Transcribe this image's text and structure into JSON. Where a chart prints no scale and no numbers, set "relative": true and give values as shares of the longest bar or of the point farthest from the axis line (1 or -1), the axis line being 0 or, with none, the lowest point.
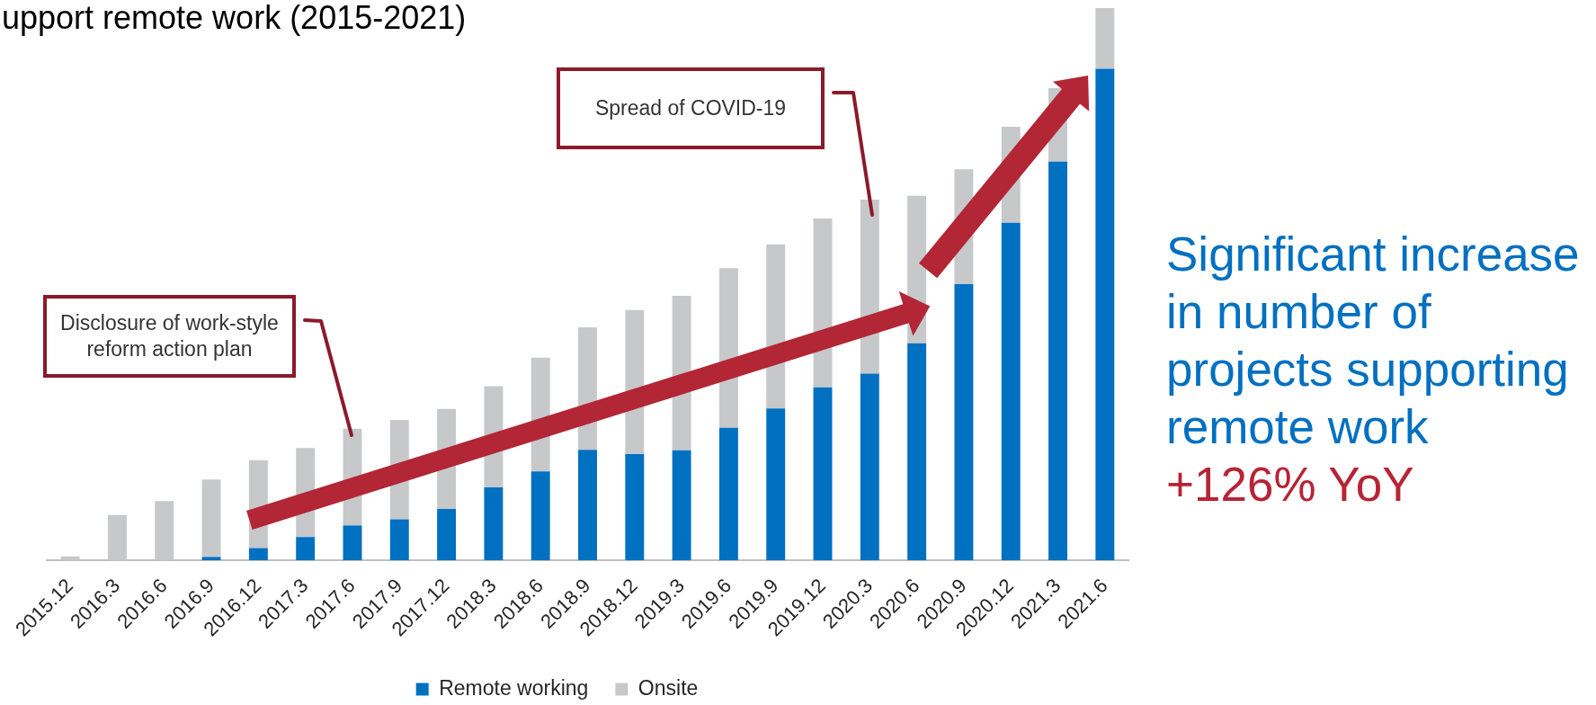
{
  "chart_data": {
    "type": "bar",
    "title": "upport remote work (2015-2021)",
    "categories": [
      "2015.12",
      "2016.3",
      "2016.6",
      "2016.9",
      "2016.12",
      "2017.3",
      "2017.6",
      "2017.9",
      "2017.12",
      "2018.3",
      "2018.6",
      "2018.9",
      "2018.12",
      "2019.3",
      "2019.6",
      "2019.9",
      "2019.12",
      "2020.3",
      "2020.6",
      "2020.9",
      "2020.12",
      "2021.3",
      "2021.6"
    ],
    "series": [
      {
        "name": "Remote working",
        "color": "#0070c0",
        "values": [
          0,
          0,
          0,
          0.006,
          0.022,
          0.042,
          0.063,
          0.074,
          0.093,
          0.132,
          0.161,
          0.2,
          0.192,
          0.199,
          0.24,
          0.275,
          0.313,
          0.338,
          0.393,
          0.5,
          0.611,
          0.722,
          0.89
        ]
      },
      {
        "name": "Onsite",
        "color": "#c7c8ca",
        "values": [
          0.007,
          0.082,
          0.107,
          0.14,
          0.159,
          0.161,
          0.175,
          0.18,
          0.181,
          0.183,
          0.206,
          0.222,
          0.261,
          0.28,
          0.289,
          0.297,
          0.306,
          0.315,
          0.267,
          0.208,
          0.174,
          0.133,
          0.11
        ]
      }
    ],
    "relative": true,
    "stacked": true,
    "legend": "bottom",
    "annotations": [
      "Disclosure of work-style reform action plan",
      "Spread of COVID-19",
      "Significant increase in number of projects supporting remote work",
      "+126% YoY"
    ]
  }
}
